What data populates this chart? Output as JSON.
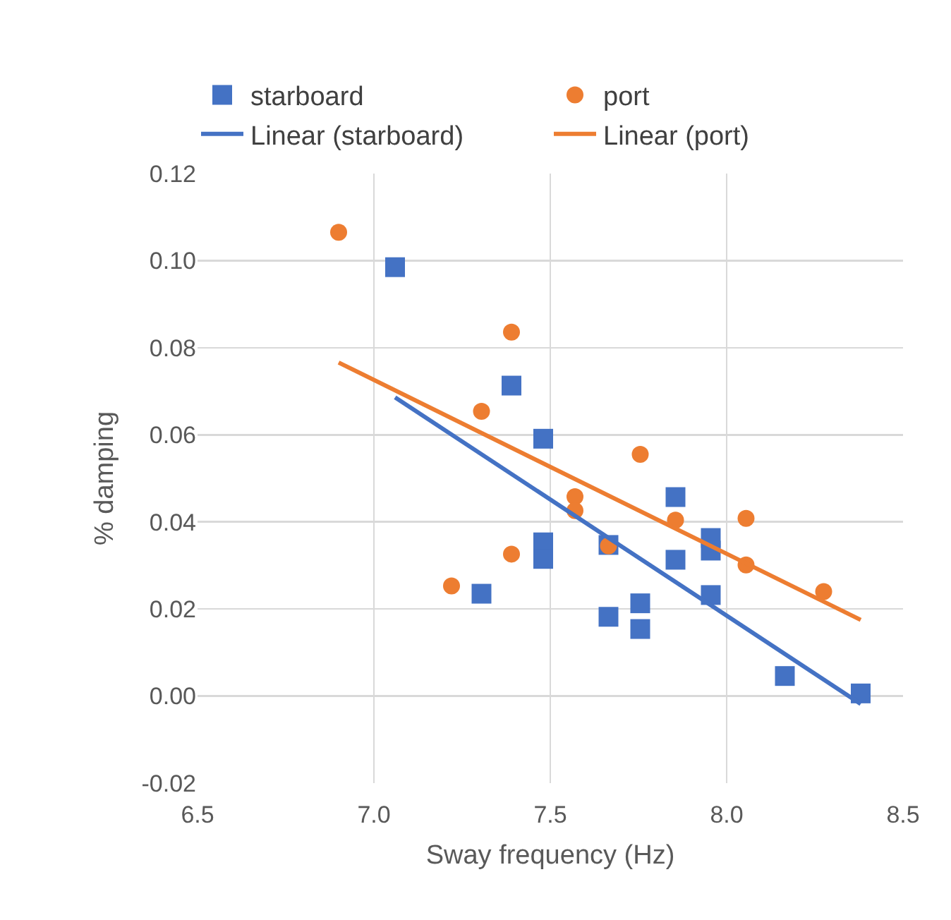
{
  "chart_data": {
    "type": "scatter",
    "xlabel": "Sway frequency (Hz)",
    "ylabel": "% damping",
    "xlim": [
      6.5,
      8.5
    ],
    "xticks": [
      6.5,
      {
        "value": 7,
        "label": "7.0"
      },
      7.5,
      {
        "value": 8,
        "label": "8.0"
      },
      8.5
    ],
    "ylim": [
      -0.02,
      0.12
    ],
    "yticks": [
      -0.02,
      {
        "value": 0,
        "label": "0.00"
      },
      0.02,
      0.04,
      0.06,
      0.08,
      {
        "value": 0.1,
        "label": "0.10"
      },
      0.12
    ],
    "grid": true,
    "legend": "top",
    "series": [
      {
        "name": "starboard",
        "color": "#4472c4",
        "marker": "square",
        "x": [
          7.06,
          7.305,
          7.39,
          7.48,
          7.48,
          7.48,
          7.665,
          7.665,
          7.755,
          7.755,
          7.855,
          7.855,
          7.955,
          7.955,
          7.955,
          8.165,
          8.38
        ],
        "values": [
          0.0985,
          0.0235,
          0.0713,
          0.0591,
          0.0353,
          0.0315,
          0.0347,
          0.0182,
          0.0213,
          0.0154,
          0.0457,
          0.0313,
          0.0363,
          0.0334,
          0.0232,
          0.0046,
          0.0006
        ]
      },
      {
        "name": "port",
        "color": "#ed7d31",
        "marker": "circle",
        "x": [
          6.9,
          7.22,
          7.305,
          7.39,
          7.39,
          7.57,
          7.57,
          7.665,
          7.755,
          7.855,
          8.055,
          8.055,
          8.275
        ],
        "values": [
          0.1065,
          0.0253,
          0.0654,
          0.0836,
          0.0326,
          0.0458,
          0.0426,
          0.0345,
          0.0555,
          0.0404,
          0.0408,
          0.0301,
          0.024
        ]
      },
      {
        "name": "Linear (starboard)",
        "type": "line",
        "color": "#4472c4",
        "marker": "none",
        "x": [
          7.06,
          8.38
        ],
        "values": [
          0.0686,
          -0.0018
        ]
      },
      {
        "name": "Linear (port)",
        "type": "line",
        "color": "#ed7d31",
        "marker": "none",
        "x": [
          6.9,
          8.38
        ],
        "values": [
          0.0766,
          0.0175
        ]
      }
    ]
  }
}
